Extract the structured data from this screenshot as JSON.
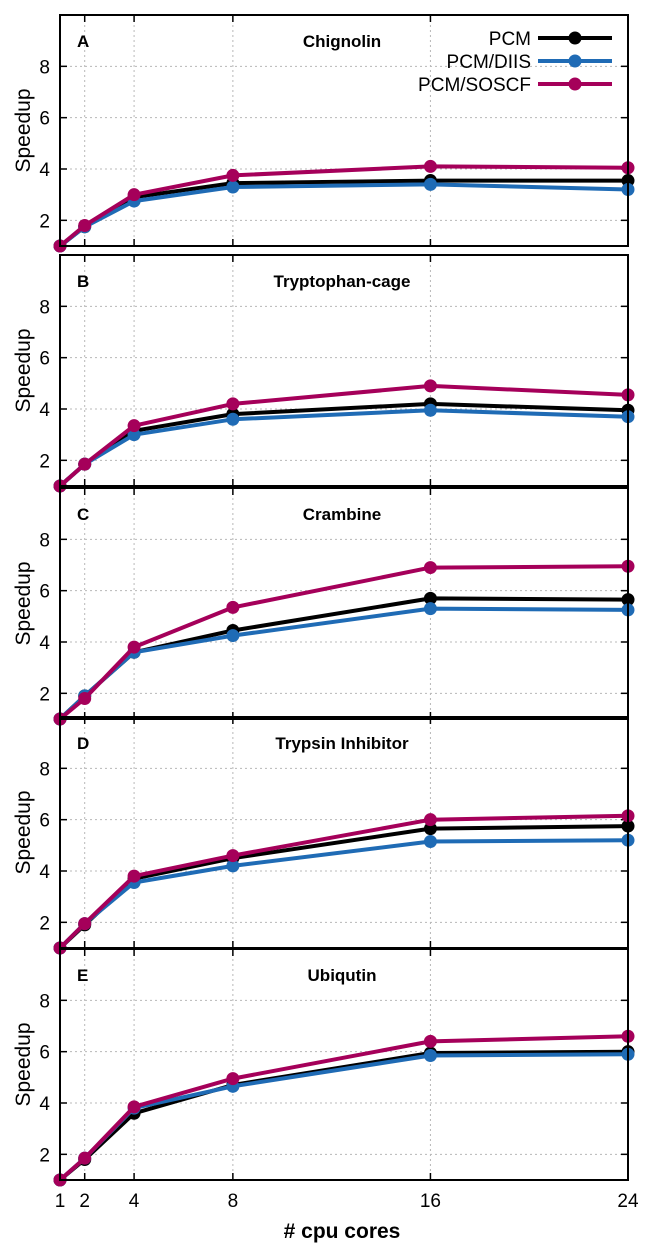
{
  "chart_data": {
    "type": "line",
    "xlabel": "# cpu cores",
    "ylabel": "Speedup",
    "x_ticks": [
      1,
      2,
      4,
      8,
      16,
      24
    ],
    "y_ticks": [
      2,
      4,
      6,
      8
    ],
    "xlim": [
      1,
      24
    ],
    "ylim": [
      1,
      10
    ],
    "grid": true,
    "legend_position": "top-right (in panel A)",
    "colors": {
      "PCM": "#000000",
      "PCM/DIIS": "#1f6bb5",
      "PCM/SOSCF": "#a5005a"
    },
    "x": [
      1,
      2,
      4,
      8,
      16,
      24
    ],
    "panels": [
      {
        "label": "A",
        "title": "Chignolin",
        "series": [
          {
            "name": "PCM",
            "values": [
              1.0,
              1.75,
              2.9,
              3.45,
              3.55,
              3.55
            ]
          },
          {
            "name": "PCM/DIIS",
            "values": [
              1.0,
              1.75,
              2.75,
              3.3,
              3.4,
              3.2
            ]
          },
          {
            "name": "PCM/SOSCF",
            "values": [
              1.0,
              1.8,
              3.0,
              3.75,
              4.1,
              4.05
            ]
          }
        ]
      },
      {
        "label": "B",
        "title": "Tryptophan-cage",
        "series": [
          {
            "name": "PCM",
            "values": [
              1.0,
              1.85,
              3.15,
              3.8,
              4.2,
              3.95
            ]
          },
          {
            "name": "PCM/DIIS",
            "values": [
              1.0,
              1.85,
              3.0,
              3.6,
              3.95,
              3.7
            ]
          },
          {
            "name": "PCM/SOSCF",
            "values": [
              1.0,
              1.85,
              3.35,
              4.2,
              4.9,
              4.55
            ]
          }
        ]
      },
      {
        "label": "C",
        "title": "Crambine",
        "series": [
          {
            "name": "PCM",
            "values": [
              1.0,
              1.9,
              3.6,
              4.45,
              5.7,
              5.65
            ]
          },
          {
            "name": "PCM/DIIS",
            "values": [
              1.0,
              1.9,
              3.6,
              4.25,
              5.3,
              5.25
            ]
          },
          {
            "name": "PCM/SOSCF",
            "values": [
              1.0,
              1.8,
              3.8,
              5.35,
              6.9,
              6.95
            ]
          }
        ]
      },
      {
        "label": "D",
        "title": "Trypsin Inhibitor",
        "series": [
          {
            "name": "PCM",
            "values": [
              1.0,
              1.9,
              3.7,
              4.5,
              5.65,
              5.75
            ]
          },
          {
            "name": "PCM/DIIS",
            "values": [
              1.0,
              1.95,
              3.55,
              4.2,
              5.15,
              5.2
            ]
          },
          {
            "name": "PCM/SOSCF",
            "values": [
              1.0,
              1.95,
              3.8,
              4.6,
              6.0,
              6.15
            ]
          }
        ]
      },
      {
        "label": "E",
        "title": "Ubiqutin",
        "series": [
          {
            "name": "PCM",
            "values": [
              1.0,
              1.8,
              3.6,
              4.7,
              5.95,
              6.0
            ]
          },
          {
            "name": "PCM/DIIS",
            "values": [
              1.0,
              1.85,
              3.8,
              4.65,
              5.85,
              5.9
            ]
          },
          {
            "name": "PCM/SOSCF",
            "values": [
              1.0,
              1.85,
              3.85,
              4.95,
              6.4,
              6.6
            ]
          }
        ]
      }
    ]
  }
}
